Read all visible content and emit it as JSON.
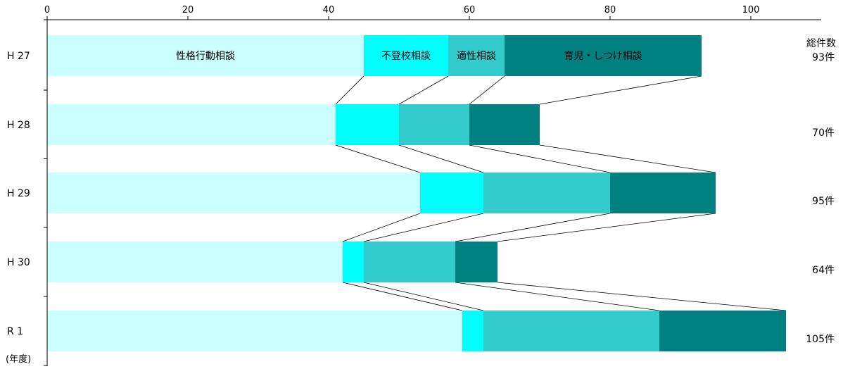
{
  "chart_data": {
    "type": "bar",
    "stacked": true,
    "orientation": "horizontal",
    "categories": [
      "H 27",
      "H 28",
      "H 29",
      "H 30",
      "R 1"
    ],
    "x_ticks": [
      "0",
      "20",
      "40",
      "60",
      "80",
      "100"
    ],
    "xlim": [
      0,
      110
    ],
    "unit_label": "(年度)",
    "series": [
      {
        "name": "性格行動相談",
        "color": "#ccffff",
        "values": [
          45,
          41,
          53,
          42,
          59
        ]
      },
      {
        "name": "不登校相談",
        "color": "#00ffff",
        "values": [
          12,
          9,
          9,
          3,
          3
        ]
      },
      {
        "name": "適性相談",
        "color": "#33cccc",
        "values": [
          8,
          10,
          18,
          13,
          25
        ]
      },
      {
        "name": "育児・しつけ相談",
        "color": "#008080",
        "values": [
          28,
          10,
          15,
          6,
          18
        ]
      }
    ],
    "totals_header": "総件数",
    "totals": [
      "93件",
      "70件",
      "95件",
      "64件",
      "105件"
    ],
    "grid": false,
    "legend": "labels inside first bar"
  }
}
